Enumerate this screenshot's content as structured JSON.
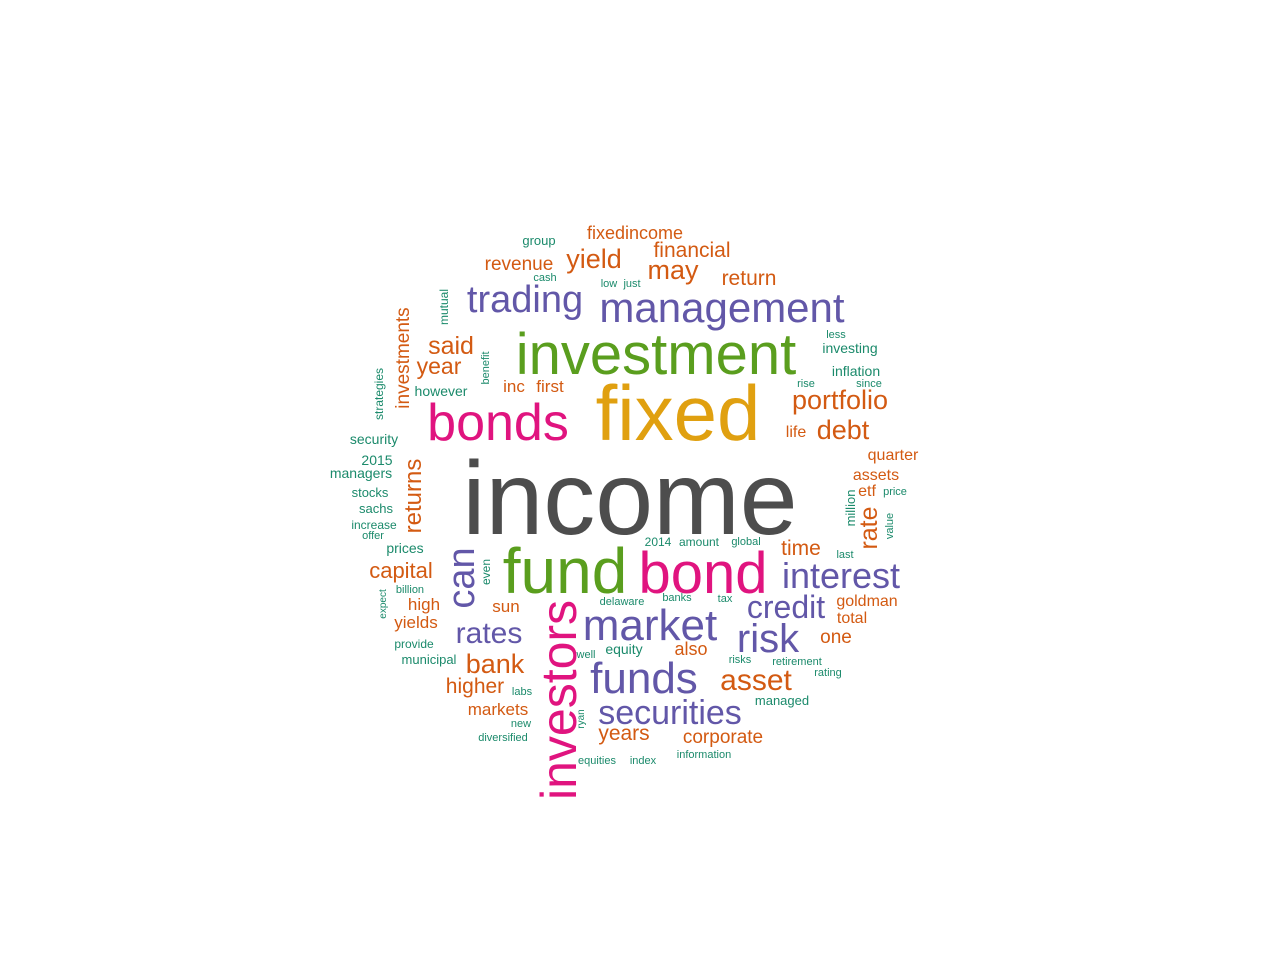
{
  "colors": {
    "gray": "#4d4d4d",
    "gold": "#e0a010",
    "green": "#5a9e1e",
    "magenta": "#e0147f",
    "purple": "#6257a8",
    "orange": "#d35a12",
    "teal": "#1b8a6b"
  },
  "words": [
    {
      "text": "income",
      "color": "gray"
    },
    {
      "text": "fixed",
      "color": "gold"
    },
    {
      "text": "investment",
      "color": "green"
    },
    {
      "text": "fund",
      "color": "green"
    },
    {
      "text": "bond",
      "color": "magenta"
    },
    {
      "text": "bonds",
      "color": "magenta"
    },
    {
      "text": "investors",
      "color": "magenta"
    },
    {
      "text": "management",
      "color": "purple"
    },
    {
      "text": "trading",
      "color": "purple"
    },
    {
      "text": "market",
      "color": "purple"
    },
    {
      "text": "funds",
      "color": "purple"
    },
    {
      "text": "interest",
      "color": "purple"
    },
    {
      "text": "risk",
      "color": "purple"
    },
    {
      "text": "credit",
      "color": "purple"
    },
    {
      "text": "securities",
      "color": "purple"
    },
    {
      "text": "rates",
      "color": "purple"
    },
    {
      "text": "can",
      "color": "purple"
    },
    {
      "text": "asset",
      "color": "orange"
    },
    {
      "text": "portfolio",
      "color": "orange"
    },
    {
      "text": "debt",
      "color": "orange"
    },
    {
      "text": "may",
      "color": "orange"
    },
    {
      "text": "yield",
      "color": "orange"
    },
    {
      "text": "said",
      "color": "orange"
    },
    {
      "text": "bank",
      "color": "orange"
    },
    {
      "text": "rate",
      "color": "orange"
    },
    {
      "text": "returns",
      "color": "orange"
    },
    {
      "text": "investments",
      "color": "orange"
    },
    {
      "text": "year",
      "color": "orange"
    },
    {
      "text": "capital",
      "color": "orange"
    },
    {
      "text": "financial",
      "color": "orange"
    },
    {
      "text": "return",
      "color": "orange"
    },
    {
      "text": "revenue",
      "color": "orange"
    },
    {
      "text": "fixedincome",
      "color": "orange"
    },
    {
      "text": "time",
      "color": "orange"
    },
    {
      "text": "higher",
      "color": "orange"
    },
    {
      "text": "years",
      "color": "orange"
    },
    {
      "text": "corporate",
      "color": "orange"
    },
    {
      "text": "one",
      "color": "orange"
    },
    {
      "text": "also",
      "color": "orange"
    },
    {
      "text": "markets",
      "color": "orange"
    },
    {
      "text": "high",
      "color": "orange"
    },
    {
      "text": "yields",
      "color": "orange"
    },
    {
      "text": "sun",
      "color": "orange"
    },
    {
      "text": "inc",
      "color": "orange"
    },
    {
      "text": "first",
      "color": "orange"
    },
    {
      "text": "quarter",
      "color": "orange"
    },
    {
      "text": "assets",
      "color": "orange"
    },
    {
      "text": "etf",
      "color": "orange"
    },
    {
      "text": "goldman",
      "color": "orange"
    },
    {
      "text": "total",
      "color": "orange"
    },
    {
      "text": "life",
      "color": "orange"
    },
    {
      "text": "group",
      "color": "teal"
    },
    {
      "text": "cash",
      "color": "teal"
    },
    {
      "text": "low",
      "color": "teal"
    },
    {
      "text": "just",
      "color": "teal"
    },
    {
      "text": "mutual",
      "color": "teal"
    },
    {
      "text": "benefit",
      "color": "teal"
    },
    {
      "text": "however",
      "color": "teal"
    },
    {
      "text": "strategies",
      "color": "teal"
    },
    {
      "text": "security",
      "color": "teal"
    },
    {
      "text": "2015",
      "color": "teal"
    },
    {
      "text": "managers",
      "color": "teal"
    },
    {
      "text": "stocks",
      "color": "teal"
    },
    {
      "text": "sachs",
      "color": "teal"
    },
    {
      "text": "increase",
      "color": "teal"
    },
    {
      "text": "offer",
      "color": "teal"
    },
    {
      "text": "prices",
      "color": "teal"
    },
    {
      "text": "billion",
      "color": "teal"
    },
    {
      "text": "expect",
      "color": "teal"
    },
    {
      "text": "provide",
      "color": "teal"
    },
    {
      "text": "municipal",
      "color": "teal"
    },
    {
      "text": "labs",
      "color": "teal"
    },
    {
      "text": "new",
      "color": "teal"
    },
    {
      "text": "diversified",
      "color": "teal"
    },
    {
      "text": "ryan",
      "color": "teal"
    },
    {
      "text": "equities",
      "color": "teal"
    },
    {
      "text": "index",
      "color": "teal"
    },
    {
      "text": "information",
      "color": "teal"
    },
    {
      "text": "managed",
      "color": "teal"
    },
    {
      "text": "rating",
      "color": "teal"
    },
    {
      "text": "retirement",
      "color": "teal"
    },
    {
      "text": "risks",
      "color": "teal"
    },
    {
      "text": "well",
      "color": "teal"
    },
    {
      "text": "equity",
      "color": "teal"
    },
    {
      "text": "delaware",
      "color": "teal"
    },
    {
      "text": "banks",
      "color": "teal"
    },
    {
      "text": "tax",
      "color": "teal"
    },
    {
      "text": "even",
      "color": "teal"
    },
    {
      "text": "2014",
      "color": "teal"
    },
    {
      "text": "amount",
      "color": "teal"
    },
    {
      "text": "global",
      "color": "teal"
    },
    {
      "text": "last",
      "color": "teal"
    },
    {
      "text": "million",
      "color": "teal"
    },
    {
      "text": "value",
      "color": "teal"
    },
    {
      "text": "price",
      "color": "teal"
    },
    {
      "text": "less",
      "color": "teal"
    },
    {
      "text": "investing",
      "color": "teal"
    },
    {
      "text": "inflation",
      "color": "teal"
    },
    {
      "text": "rise",
      "color": "teal"
    },
    {
      "text": "since",
      "color": "teal"
    }
  ]
}
